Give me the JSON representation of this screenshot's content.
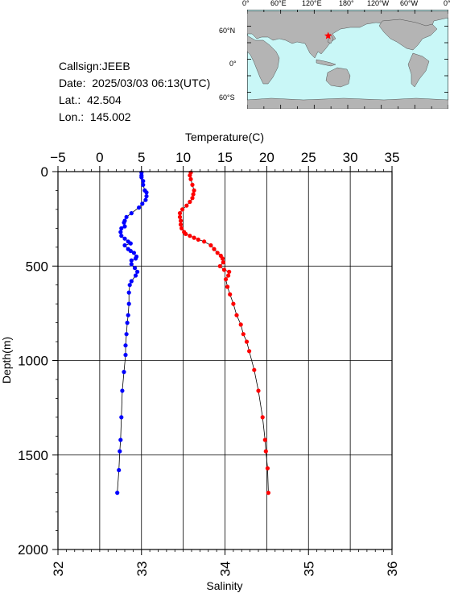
{
  "station": {
    "callsign": "Callsign:JEEB",
    "date": "Date:  2025/03/03 06:13(UTC)",
    "lat": "Lat.:  42.504",
    "lon": "Lon.:  145.002"
  },
  "map": {
    "top_labels": [
      "0°",
      "60°E",
      "120°E",
      "180°",
      "120°W",
      "60°W",
      "0°"
    ],
    "left_labels": [
      "60°N",
      "0°",
      "60°S"
    ],
    "ocean_color": "#c9f7f7",
    "land_color": "#b4b4b4",
    "marker": {
      "lon": 145.002,
      "lat": 42.504,
      "color": "#ff0000",
      "icon": "star-icon"
    }
  },
  "chart_data": {
    "type": "line",
    "top_axis_label": "Temperature(C)",
    "bottom_axis_label": "Salinity",
    "yaxis_label": "Depth(m)",
    "temperature_range": [
      -5,
      35
    ],
    "salinity_range": [
      32,
      36
    ],
    "depth_range": [
      0,
      2000
    ],
    "temperature_ticks": [
      "-5",
      "0",
      "5",
      "10",
      "15",
      "20",
      "25",
      "30",
      "35"
    ],
    "salinity_ticks": [
      "32",
      "33",
      "34",
      "35",
      "36"
    ],
    "depth_ticks": [
      "0",
      "500",
      "1000",
      "1500",
      "2000"
    ],
    "grid": true,
    "series": [
      {
        "quantity": "salinity",
        "color": "#0000ff",
        "points": [
          [
            33.0,
            5
          ],
          [
            33.0,
            20
          ],
          [
            33.0,
            30
          ],
          [
            33.02,
            50
          ],
          [
            33.02,
            70
          ],
          [
            33.04,
            100
          ],
          [
            33.06,
            110
          ],
          [
            33.06,
            130
          ],
          [
            33.05,
            150
          ],
          [
            33.01,
            170
          ],
          [
            32.97,
            190
          ],
          [
            32.88,
            220
          ],
          [
            32.82,
            240
          ],
          [
            32.8,
            260
          ],
          [
            32.79,
            270
          ],
          [
            32.8,
            290
          ],
          [
            32.76,
            300
          ],
          [
            32.75,
            320
          ],
          [
            32.76,
            340
          ],
          [
            32.8,
            355
          ],
          [
            32.84,
            370
          ],
          [
            32.87,
            380
          ],
          [
            32.8,
            390
          ],
          [
            32.84,
            410
          ],
          [
            32.87,
            420
          ],
          [
            32.91,
            430
          ],
          [
            32.94,
            450
          ],
          [
            32.93,
            460
          ],
          [
            32.88,
            470
          ],
          [
            32.88,
            490
          ],
          [
            32.92,
            510
          ],
          [
            32.95,
            530
          ],
          [
            32.93,
            550
          ],
          [
            32.88,
            580
          ],
          [
            32.86,
            600
          ],
          [
            32.85,
            640
          ],
          [
            32.85,
            700
          ],
          [
            32.84,
            760
          ],
          [
            32.83,
            800
          ],
          [
            32.82,
            860
          ],
          [
            32.81,
            920
          ],
          [
            32.81,
            970
          ],
          [
            32.79,
            1060
          ],
          [
            32.77,
            1160
          ],
          [
            32.76,
            1300
          ],
          [
            32.75,
            1420
          ],
          [
            32.74,
            1480
          ],
          [
            32.73,
            1580
          ],
          [
            32.71,
            1700
          ]
        ]
      },
      {
        "quantity": "temperature",
        "color": "#ff0000",
        "points": [
          [
            10.9,
            5
          ],
          [
            10.8,
            20
          ],
          [
            10.9,
            40
          ],
          [
            11.1,
            70
          ],
          [
            11.3,
            100
          ],
          [
            11.2,
            120
          ],
          [
            11.1,
            140
          ],
          [
            10.8,
            160
          ],
          [
            10.4,
            180
          ],
          [
            9.9,
            200
          ],
          [
            9.6,
            220
          ],
          [
            9.6,
            240
          ],
          [
            9.7,
            260
          ],
          [
            9.7,
            280
          ],
          [
            9.8,
            300
          ],
          [
            10.1,
            320
          ],
          [
            10.3,
            330
          ],
          [
            10.8,
            340
          ],
          [
            11.3,
            350
          ],
          [
            11.8,
            360
          ],
          [
            12.5,
            370
          ],
          [
            13.3,
            390
          ],
          [
            13.7,
            410
          ],
          [
            14.1,
            430
          ],
          [
            14.5,
            445
          ],
          [
            14.7,
            460
          ],
          [
            14.8,
            480
          ],
          [
            14.4,
            500
          ],
          [
            14.9,
            520
          ],
          [
            15.5,
            530
          ],
          [
            15.4,
            550
          ],
          [
            15.1,
            570
          ],
          [
            15.3,
            610
          ],
          [
            15.6,
            650
          ],
          [
            16.0,
            700
          ],
          [
            16.4,
            760
          ],
          [
            16.9,
            810
          ],
          [
            17.2,
            860
          ],
          [
            17.6,
            900
          ],
          [
            17.9,
            950
          ],
          [
            18.5,
            1050
          ],
          [
            19.0,
            1160
          ],
          [
            19.5,
            1300
          ],
          [
            19.8,
            1420
          ],
          [
            19.9,
            1480
          ],
          [
            20.1,
            1570
          ],
          [
            20.2,
            1700
          ]
        ]
      }
    ]
  }
}
